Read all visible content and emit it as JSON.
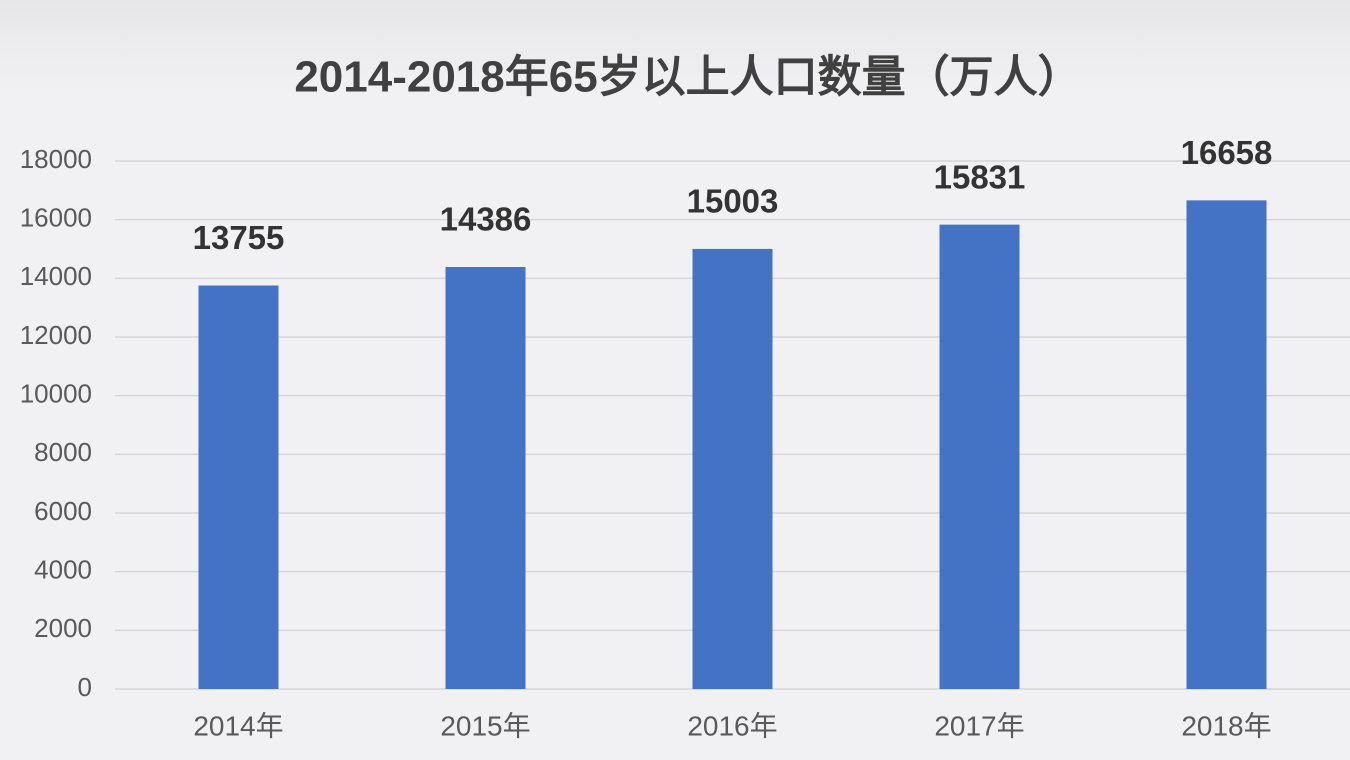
{
  "chart_data": {
    "type": "bar",
    "title": "2014-2018年65岁以上人口数量（万人）",
    "categories": [
      "2014年",
      "2015年",
      "2016年",
      "2017年",
      "2018年"
    ],
    "values": [
      13755,
      14386,
      15003,
      15831,
      16658
    ],
    "color": "#4472c4",
    "ylim": [
      0,
      18000
    ],
    "yticks": [
      0,
      2000,
      4000,
      6000,
      8000,
      10000,
      12000,
      14000,
      16000,
      18000
    ],
    "grid": true
  }
}
